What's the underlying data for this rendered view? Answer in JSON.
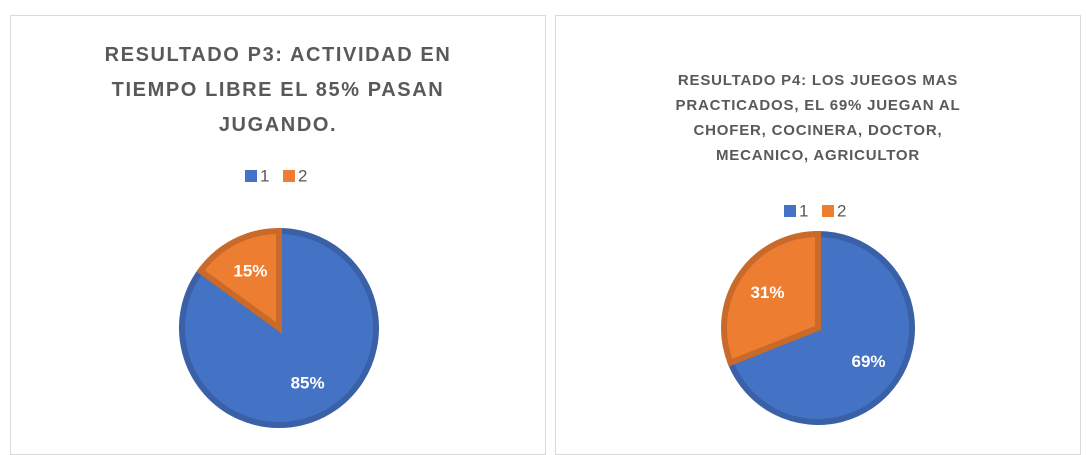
{
  "chart_data": [
    {
      "type": "pie",
      "title": "RESULTADO P3: ACTIVIDAD EN TIEMPO LIBRE EL 85% PASAN JUGANDO.",
      "categories": [
        "1",
        "2"
      ],
      "values": [
        85,
        15
      ],
      "value_labels": [
        "85%",
        "15%"
      ],
      "colors": [
        "#4472c4",
        "#ed7d31"
      ],
      "legend": "top"
    },
    {
      "type": "pie",
      "title": "RESULTADO P4: LOS JUEGOS MAS PRACTICADOS, EL 69% JUEGAN AL CHOFER, COCINERA, DOCTOR, MECANICO, AGRICULTOR",
      "categories": [
        "1",
        "2"
      ],
      "values": [
        69,
        31
      ],
      "value_labels": [
        "69%",
        "31%"
      ],
      "colors": [
        "#4472c4",
        "#ed7d31"
      ],
      "legend": "top"
    }
  ]
}
